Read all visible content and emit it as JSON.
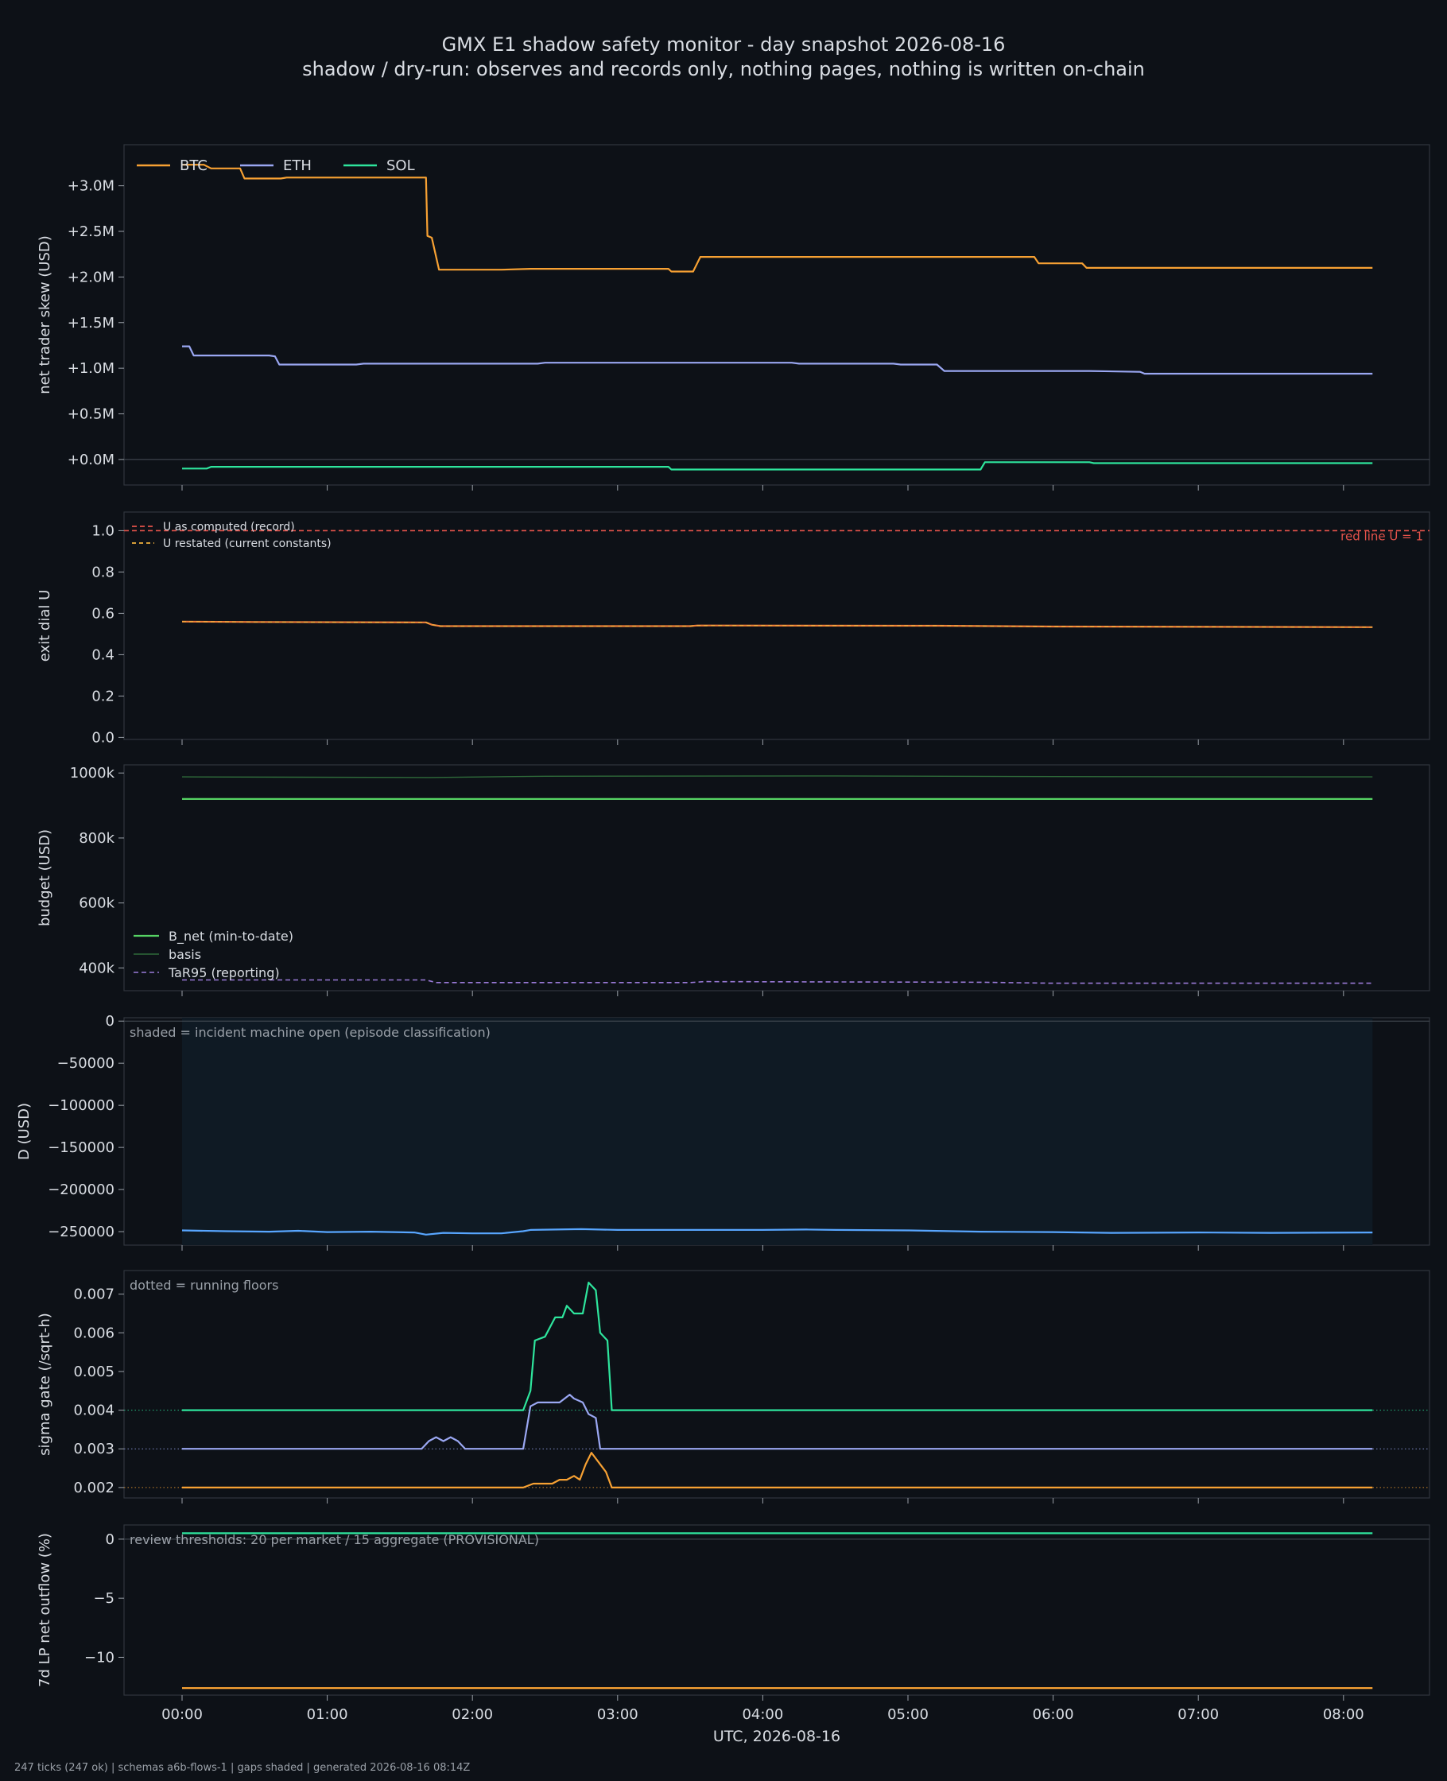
{
  "title": "GMX E1 shadow safety monitor - day snapshot 2026-08-16",
  "subtitle": "shadow / dry-run: observes and records only, nothing pages, nothing is written on-chain",
  "footer": "247 ticks (247 ok) | schemas a6b-flows-1 | gaps shaded | generated 2026-08-16 08:14Z",
  "colors": {
    "btc": "#f7a133",
    "eth": "#9aa7f2",
    "sol": "#2ee59d",
    "red": "#e5534b",
    "orange": "#f07e3a",
    "green": "#56d364",
    "darkgreen": "#2f6b3a",
    "purple": "#9a7ad8",
    "blue": "#58a6ff",
    "bg": "#0d1117",
    "panel": "#0d1117",
    "grid": "#30363d"
  },
  "chart_data": [
    {
      "type": "line",
      "ylabel": "net trader skew (USD)",
      "yticks": [
        "+0.0M",
        "+0.5M",
        "+1.0M",
        "+1.5M",
        "+2.0M",
        "+2.5M",
        "+3.0M"
      ],
      "ylim": [
        -0.28,
        3.45
      ],
      "legend": [
        "BTC",
        "ETH",
        "SOL"
      ],
      "series": [
        {
          "name": "BTC",
          "color": "btc",
          "points": [
            [
              0,
              3.23
            ],
            [
              0.15,
              3.23
            ],
            [
              0.2,
              3.19
            ],
            [
              0.4,
              3.19
            ],
            [
              0.43,
              3.08
            ],
            [
              0.68,
              3.08
            ],
            [
              0.72,
              3.09
            ],
            [
              1.4,
              3.09
            ],
            [
              1.68,
              3.09
            ],
            [
              1.69,
              2.45
            ],
            [
              1.72,
              2.43
            ],
            [
              1.77,
              2.08
            ],
            [
              2.2,
              2.08
            ],
            [
              2.4,
              2.09
            ],
            [
              3.35,
              2.09
            ],
            [
              3.37,
              2.06
            ],
            [
              3.52,
              2.06
            ],
            [
              3.57,
              2.22
            ],
            [
              5.87,
              2.22
            ],
            [
              5.9,
              2.15
            ],
            [
              6.2,
              2.15
            ],
            [
              6.23,
              2.1
            ],
            [
              7.5,
              2.1
            ],
            [
              8.2,
              2.1
            ]
          ]
        },
        {
          "name": "ETH",
          "color": "eth",
          "points": [
            [
              0,
              1.24
            ],
            [
              0.05,
              1.24
            ],
            [
              0.08,
              1.14
            ],
            [
              0.6,
              1.14
            ],
            [
              0.64,
              1.13
            ],
            [
              0.67,
              1.04
            ],
            [
              1.2,
              1.04
            ],
            [
              1.25,
              1.05
            ],
            [
              2.45,
              1.05
            ],
            [
              2.5,
              1.06
            ],
            [
              4.2,
              1.06
            ],
            [
              4.25,
              1.05
            ],
            [
              4.9,
              1.05
            ],
            [
              4.95,
              1.04
            ],
            [
              5.2,
              1.04
            ],
            [
              5.25,
              0.97
            ],
            [
              6.25,
              0.97
            ],
            [
              6.6,
              0.96
            ],
            [
              6.63,
              0.94
            ],
            [
              8.2,
              0.94
            ]
          ]
        },
        {
          "name": "SOL",
          "color": "sol",
          "points": [
            [
              0,
              -0.1
            ],
            [
              0.17,
              -0.1
            ],
            [
              0.2,
              -0.08
            ],
            [
              3.35,
              -0.08
            ],
            [
              3.37,
              -0.11
            ],
            [
              5.5,
              -0.11
            ],
            [
              5.53,
              -0.03
            ],
            [
              6.25,
              -0.03
            ],
            [
              6.28,
              -0.04
            ],
            [
              8.2,
              -0.04
            ]
          ]
        }
      ]
    },
    {
      "type": "line",
      "ylabel": "exit dial U",
      "yticks": [
        "0.0",
        "0.2",
        "0.4",
        "0.6",
        "0.8",
        "1.0"
      ],
      "ylim": [
        -0.01,
        1.09
      ],
      "legend": [
        "U as computed (record)",
        "U restated (current constants)"
      ],
      "annotation": "red line U = 1",
      "series": [
        {
          "name": "U as computed (record)",
          "color": "orange",
          "points": [
            [
              0,
              0.56
            ],
            [
              0.5,
              0.558
            ],
            [
              1.68,
              0.556
            ],
            [
              1.72,
              0.545
            ],
            [
              1.78,
              0.538
            ],
            [
              3.5,
              0.538
            ],
            [
              3.55,
              0.541
            ],
            [
              5.2,
              0.54
            ],
            [
              6,
              0.536
            ],
            [
              8.2,
              0.533
            ]
          ]
        }
      ],
      "redline": 1.0
    },
    {
      "type": "line",
      "ylabel": "budget (USD)",
      "yticks": [
        "400k",
        "600k",
        "800k",
        "1000k"
      ],
      "ylim": [
        330,
        1025
      ],
      "legend": [
        "B_net (min-to-date)",
        "basis",
        "TaR95 (reporting)"
      ],
      "series": [
        {
          "name": "B_net (min-to-date)",
          "color": "green",
          "points": [
            [
              0,
              920
            ],
            [
              8.2,
              920
            ]
          ]
        },
        {
          "name": "basis",
          "color": "darkgreen",
          "points": [
            [
              0,
              988
            ],
            [
              1.7,
              986
            ],
            [
              2.5,
              990
            ],
            [
              4.5,
              991
            ],
            [
              6,
              989
            ],
            [
              8.2,
              988
            ]
          ]
        },
        {
          "name": "TaR95 (reporting)",
          "color": "purple",
          "points": [
            [
              0,
              363
            ],
            [
              1.68,
              363
            ],
            [
              1.75,
              355
            ],
            [
              3.5,
              355
            ],
            [
              3.6,
              358
            ],
            [
              5.5,
              356
            ],
            [
              6,
              353
            ],
            [
              8.2,
              353
            ]
          ]
        }
      ]
    },
    {
      "type": "line",
      "ylabel": "D (USD)",
      "yticks": [
        "−250000",
        "−200000",
        "−150000",
        "−100000",
        "−50000",
        "0"
      ],
      "ylim": [
        -266000,
        4000
      ],
      "annotation": "shaded = incident machine open (episode classification)",
      "series": [
        {
          "name": "D",
          "color": "blue",
          "points": [
            [
              0,
              -248500
            ],
            [
              0.3,
              -249500
            ],
            [
              0.6,
              -250000
            ],
            [
              0.8,
              -249000
            ],
            [
              1,
              -250500
            ],
            [
              1.3,
              -250000
            ],
            [
              1.6,
              -251000
            ],
            [
              1.68,
              -253500
            ],
            [
              1.8,
              -251500
            ],
            [
              2,
              -252000
            ],
            [
              2.2,
              -252000
            ],
            [
              2.35,
              -249500
            ],
            [
              2.4,
              -248000
            ],
            [
              2.75,
              -247000
            ],
            [
              3,
              -248000
            ],
            [
              3.5,
              -248000
            ],
            [
              4,
              -248000
            ],
            [
              4.3,
              -247500
            ],
            [
              4.5,
              -248000
            ],
            [
              5,
              -248500
            ],
            [
              5.5,
              -250000
            ],
            [
              6,
              -250500
            ],
            [
              6.4,
              -251500
            ],
            [
              7,
              -251000
            ],
            [
              7.5,
              -251500
            ],
            [
              8.2,
              -251000
            ]
          ]
        }
      ]
    },
    {
      "type": "line",
      "ylabel": "sigma gate (/sqrt-h)",
      "yticks": [
        "0.002",
        "0.003",
        "0.004",
        "0.005",
        "0.006",
        "0.007"
      ],
      "ylim": [
        0.00173,
        0.00761
      ],
      "annotation": "dotted = running floors",
      "floors": [
        0.002,
        0.003,
        0.004
      ],
      "series": [
        {
          "name": "SOL",
          "color": "sol",
          "points": [
            [
              0,
              0.004
            ],
            [
              2.35,
              0.004
            ],
            [
              2.4,
              0.0045
            ],
            [
              2.43,
              0.0058
            ],
            [
              2.5,
              0.0059
            ],
            [
              2.57,
              0.0064
            ],
            [
              2.62,
              0.0064
            ],
            [
              2.65,
              0.0067
            ],
            [
              2.7,
              0.0065
            ],
            [
              2.76,
              0.0065
            ],
            [
              2.8,
              0.0073
            ],
            [
              2.85,
              0.0071
            ],
            [
              2.88,
              0.006
            ],
            [
              2.93,
              0.0058
            ],
            [
              2.96,
              0.004
            ],
            [
              8.2,
              0.004
            ]
          ]
        },
        {
          "name": "ETH",
          "color": "eth",
          "points": [
            [
              0,
              0.003
            ],
            [
              1.65,
              0.003
            ],
            [
              1.7,
              0.0032
            ],
            [
              1.75,
              0.0033
            ],
            [
              1.8,
              0.0032
            ],
            [
              1.85,
              0.0033
            ],
            [
              1.9,
              0.0032
            ],
            [
              1.95,
              0.003
            ],
            [
              2.35,
              0.003
            ],
            [
              2.4,
              0.0041
            ],
            [
              2.45,
              0.0042
            ],
            [
              2.6,
              0.0042
            ],
            [
              2.67,
              0.0044
            ],
            [
              2.7,
              0.0043
            ],
            [
              2.76,
              0.0042
            ],
            [
              2.8,
              0.0039
            ],
            [
              2.85,
              0.0038
            ],
            [
              2.88,
              0.003
            ],
            [
              8.2,
              0.003
            ]
          ]
        },
        {
          "name": "BTC",
          "color": "btc",
          "points": [
            [
              0,
              0.002
            ],
            [
              2.35,
              0.002
            ],
            [
              2.42,
              0.0021
            ],
            [
              2.55,
              0.0021
            ],
            [
              2.6,
              0.0022
            ],
            [
              2.65,
              0.0022
            ],
            [
              2.7,
              0.0023
            ],
            [
              2.74,
              0.0022
            ],
            [
              2.78,
              0.0026
            ],
            [
              2.82,
              0.0029
            ],
            [
              2.88,
              0.0026
            ],
            [
              2.92,
              0.0024
            ],
            [
              2.96,
              0.002
            ],
            [
              8.2,
              0.002
            ]
          ]
        }
      ]
    },
    {
      "type": "line",
      "ylabel": "7d LP net outflow (%)",
      "xlabel": "UTC, 2026-08-16",
      "yticks": [
        "−10",
        "−5",
        "0"
      ],
      "ylim": [
        -13.2,
        1.2
      ],
      "annotation": "review thresholds: 20 per market / 15 aggregate (PROVISIONAL)",
      "series": [
        {
          "name": "SOL",
          "color": "sol",
          "points": [
            [
              0,
              0.5
            ],
            [
              8.2,
              0.5
            ]
          ]
        },
        {
          "name": "BTC",
          "color": "btc",
          "points": [
            [
              0,
              -12.6
            ],
            [
              8.2,
              -12.6
            ]
          ]
        }
      ]
    }
  ],
  "xticks": [
    "00:00",
    "01:00",
    "02:00",
    "03:00",
    "04:00",
    "05:00",
    "06:00",
    "07:00",
    "08:00"
  ]
}
